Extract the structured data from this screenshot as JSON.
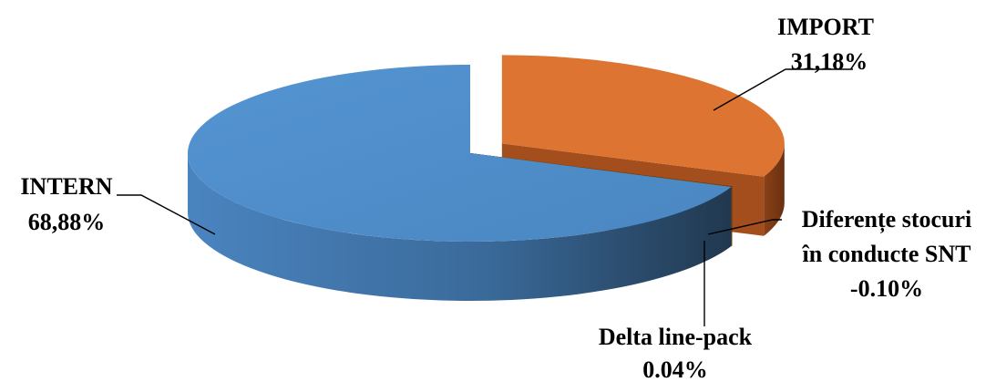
{
  "chart_data": {
    "type": "pie",
    "three_d": true,
    "exploded": [
      "IMPORT"
    ],
    "categories": [
      "INTERN",
      "IMPORT",
      "Delta line-pack",
      "Diferențe stocuri în conducte SNT"
    ],
    "values": [
      68.88,
      31.18,
      0.04,
      -0.1
    ],
    "value_labels": [
      "68,88%",
      "31,18%",
      "0.04%",
      "-0.10%"
    ],
    "colors": {
      "INTERN": "#4F8CC9",
      "IMPORT": "#DD7230",
      "Delta line-pack": "#8B6914",
      "Diferente": "#7A4A10"
    },
    "labels": {
      "intern": {
        "name": "INTERN",
        "value": "68,88%"
      },
      "import": {
        "name": "IMPORT",
        "value": "31,18%"
      },
      "diferente": {
        "line1": "Diferențe stocuri",
        "line2": "în conducte SNT",
        "value": "-0.10%"
      },
      "delta": {
        "name": "Delta line-pack",
        "value": "0.04%"
      }
    },
    "legend": "none"
  }
}
